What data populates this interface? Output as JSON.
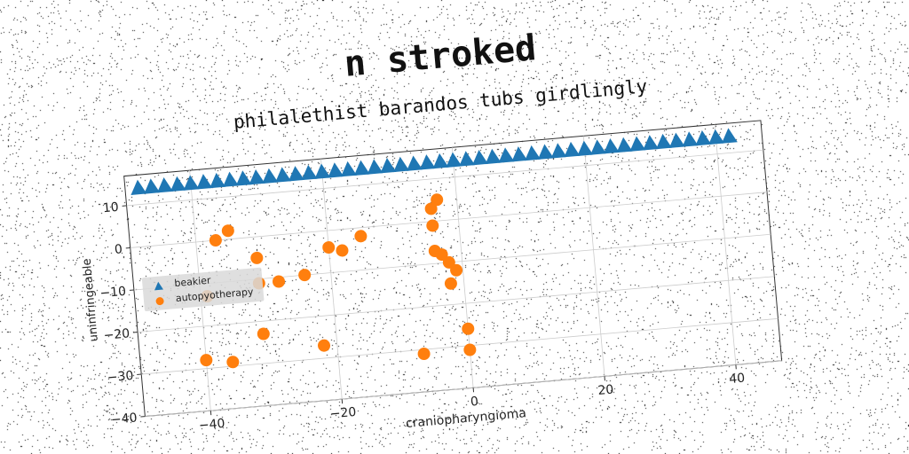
{
  "title": "n stroked",
  "subtitle": "philalethist barandos tubs girdlingly",
  "chart_data": {
    "type": "scatter",
    "xlabel": "craniopharyngioma",
    "ylabel": "uninfringeable",
    "xlim": [
      -50,
      47
    ],
    "ylim": [
      -40,
      17
    ],
    "xticks": [
      -40,
      -20,
      0,
      20,
      40
    ],
    "yticks": [
      10,
      0,
      -10,
      -20,
      -30,
      -40
    ],
    "grid": true,
    "legend_position": "center-left",
    "series": [
      {
        "name": "beakier",
        "marker": "triangle",
        "color": "#1f77b4",
        "x": [
          -48,
          -46,
          -44,
          -42,
          -40,
          -38,
          -36,
          -34,
          -32,
          -30,
          -28,
          -26,
          -24,
          -22,
          -20,
          -18,
          -16,
          -14,
          -12,
          -10,
          -8,
          -6,
          -4,
          -2,
          0,
          2,
          4,
          6,
          8,
          10,
          12,
          14,
          16,
          18,
          20,
          22,
          24,
          26,
          28,
          30,
          32,
          34,
          36,
          38,
          40,
          42
        ],
        "y": [
          14,
          14,
          14,
          14,
          14,
          14,
          14,
          14,
          14,
          14,
          14,
          14,
          14,
          14,
          14,
          14,
          14,
          14,
          14,
          14,
          14,
          14,
          14,
          14,
          14,
          14,
          14,
          14,
          14,
          14,
          14,
          14,
          14,
          14,
          14,
          14,
          14,
          14,
          14,
          14,
          14,
          14,
          14,
          14,
          14,
          14
        ]
      },
      {
        "name": "autopyotherapy",
        "marker": "circle",
        "color": "#ff7f0e",
        "x": [
          -37,
          -35,
          -31,
          -31,
          -28,
          -24,
          -20,
          -18,
          -15,
          -4,
          -3,
          -4,
          -4,
          -3,
          -2,
          -2,
          -1,
          0,
          0,
          -7,
          -22,
          -31,
          -36,
          -40,
          -39
        ],
        "y": [
          0,
          2,
          -5,
          -11,
          -11,
          -10,
          -4,
          -5,
          -2,
          3,
          5,
          -1,
          -7,
          -8,
          -10,
          -15,
          -12,
          -26,
          -31,
          -31,
          -27,
          -23,
          -29,
          -28,
          -13
        ]
      }
    ]
  }
}
